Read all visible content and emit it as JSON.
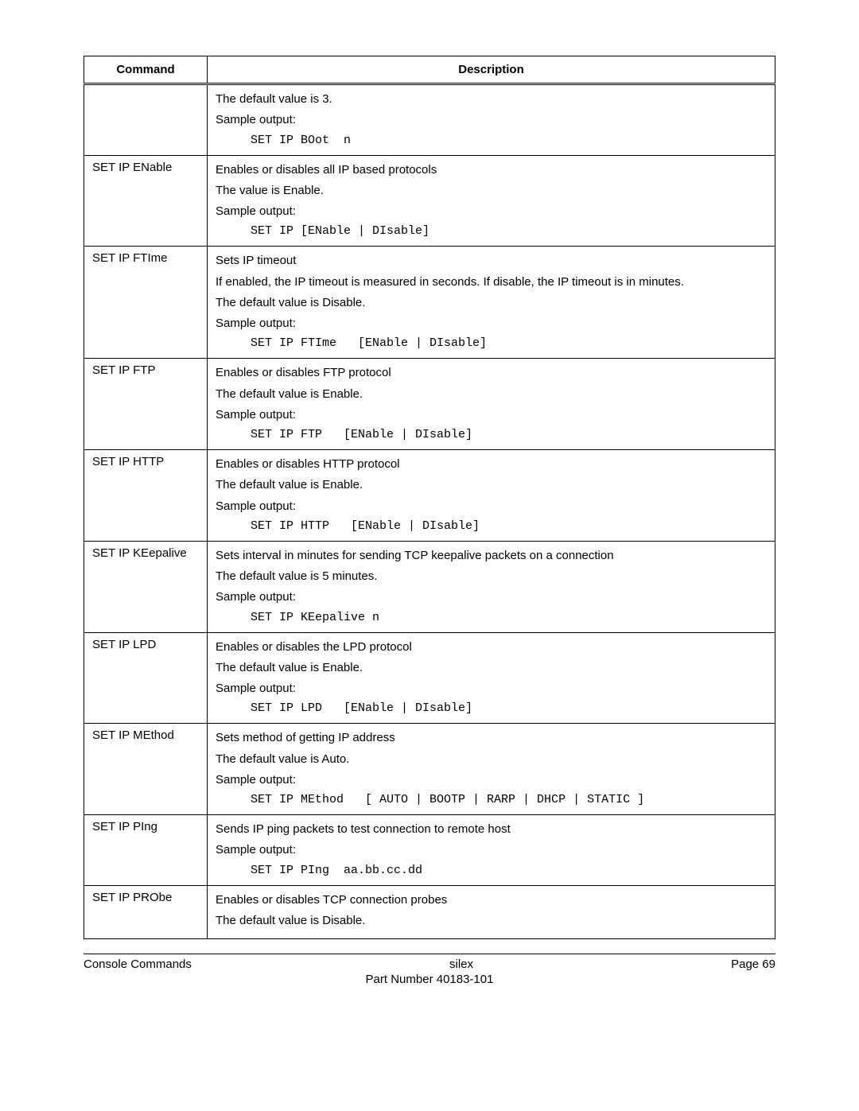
{
  "headers": {
    "command": "Command",
    "description": "Description"
  },
  "rows": [
    {
      "command": "",
      "lines": [
        {
          "t": "text",
          "v": "The default value is 3."
        },
        {
          "t": "text",
          "v": "Sample output:"
        },
        {
          "t": "mono",
          "v": "SET IP BOot  n"
        }
      ]
    },
    {
      "command": "SET IP ENable",
      "lines": [
        {
          "t": "text",
          "v": "Enables or disables all IP based protocols"
        },
        {
          "t": "text",
          "v": "The value is Enable."
        },
        {
          "t": "text",
          "v": "Sample output:"
        },
        {
          "t": "mono",
          "v": "SET IP [ENable | DIsable]"
        }
      ]
    },
    {
      "command": "SET IP FTIme",
      "lines": [
        {
          "t": "text",
          "v": "Sets IP timeout"
        },
        {
          "t": "text",
          "v": "If enabled, the IP timeout is measured in seconds.  If disable, the IP timeout is in minutes."
        },
        {
          "t": "text",
          "v": "The default value is Disable."
        },
        {
          "t": "text",
          "v": "Sample output:"
        },
        {
          "t": "mono",
          "v": "SET IP FTIme   [ENable | DIsable]"
        }
      ]
    },
    {
      "command": "SET IP FTP",
      "lines": [
        {
          "t": "text",
          "v": "Enables or disables FTP protocol"
        },
        {
          "t": "text",
          "v": "The default value is Enable."
        },
        {
          "t": "text",
          "v": "Sample output:"
        },
        {
          "t": "mono",
          "v": "SET IP FTP   [ENable | DIsable]"
        }
      ]
    },
    {
      "command": "SET IP HTTP",
      "lines": [
        {
          "t": "text",
          "v": "Enables or disables HTTP protocol"
        },
        {
          "t": "text",
          "v": "The default value is Enable."
        },
        {
          "t": "text",
          "v": "Sample output:"
        },
        {
          "t": "mono",
          "v": "SET IP HTTP   [ENable | DIsable]"
        }
      ]
    },
    {
      "command": "SET IP KEepalive",
      "lines": [
        {
          "t": "text",
          "v": "Sets interval in minutes for sending TCP keepalive packets on a connection"
        },
        {
          "t": "text",
          "v": "The default value is 5 minutes."
        },
        {
          "t": "text",
          "v": "Sample output:"
        },
        {
          "t": "mono",
          "v": "SET IP KEepalive n"
        }
      ]
    },
    {
      "command": "SET IP LPD",
      "lines": [
        {
          "t": "text",
          "v": "Enables or disables the LPD protocol"
        },
        {
          "t": "text",
          "v": "The default value is Enable."
        },
        {
          "t": "text",
          "v": "Sample output:"
        },
        {
          "t": "mono",
          "v": "SET IP LPD   [ENable | DIsable]"
        }
      ]
    },
    {
      "command": "SET IP MEthod",
      "lines": [
        {
          "t": "text",
          "v": "Sets method of getting IP address"
        },
        {
          "t": "text",
          "v": "The default value is Auto."
        },
        {
          "t": "text",
          "v": "Sample output:"
        },
        {
          "t": "mono",
          "v": "SET IP MEthod   [ AUTO | BOOTP | RARP | DHCP | STATIC ]"
        }
      ]
    },
    {
      "command": "SET IP PIng",
      "lines": [
        {
          "t": "text",
          "v": "Sends IP ping packets to test connection to remote host"
        },
        {
          "t": "text",
          "v": "Sample output:"
        },
        {
          "t": "mono",
          "v": "SET IP PIng  aa.bb.cc.dd"
        }
      ]
    },
    {
      "command": "SET IP PRObe",
      "lines": [
        {
          "t": "text",
          "v": "Enables or disables TCP connection probes"
        },
        {
          "t": "text",
          "v": "The default value is Disable."
        }
      ]
    }
  ],
  "footer": {
    "left": "Console Commands",
    "center": "silex",
    "right": "Page 69",
    "part": "Part Number 40183-101"
  }
}
